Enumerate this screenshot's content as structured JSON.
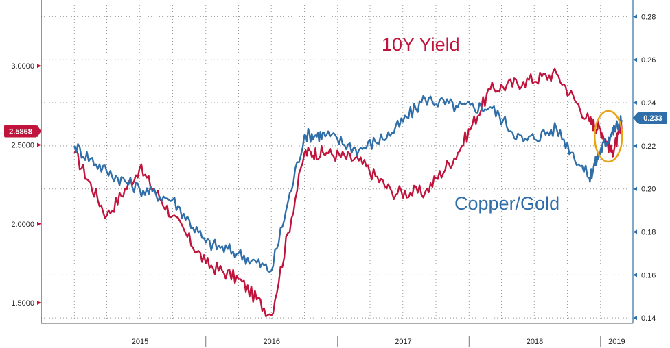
{
  "chart_data": {
    "type": "line",
    "title": "",
    "x": [
      "2015-01",
      "2015-04",
      "2015-07",
      "2015-10",
      "2016-01",
      "2016-04",
      "2016-07",
      "2016-10",
      "2016-12",
      "2017-03",
      "2017-06",
      "2017-09",
      "2017-12",
      "2018-03",
      "2018-06",
      "2018-09",
      "2018-12",
      "2019-01",
      "2019-02",
      "2019-03"
    ],
    "x_ticks": [
      "2015",
      "2016",
      "2017",
      "2018",
      "2019"
    ],
    "y_left": {
      "ticks": [
        "3.0000",
        "2.5000",
        "2.0000",
        "1.5000"
      ],
      "tick_values": [
        3.0,
        2.5,
        2.0,
        1.5
      ],
      "range": [
        1.37,
        3.4
      ]
    },
    "y_right": {
      "ticks": [
        "0.28",
        "0.26",
        "0.24",
        "0.22",
        "0.20",
        "0.18",
        "0.16",
        "0.14"
      ],
      "tick_values": [
        0.28,
        0.26,
        0.24,
        0.22,
        0.2,
        0.18,
        0.16,
        0.14
      ],
      "range": [
        0.1375,
        0.2865
      ]
    },
    "grid": true,
    "series": [
      {
        "name": "10Y Yield",
        "axis": "left",
        "color": "#c0143c",
        "values": [
          2.45,
          2.05,
          2.35,
          2.05,
          1.75,
          1.65,
          1.42,
          2.45,
          2.45,
          2.4,
          2.2,
          2.2,
          2.45,
          2.85,
          2.9,
          2.95,
          2.65,
          2.6,
          2.45,
          2.6
        ],
        "last_value_tag": "2.5868"
      },
      {
        "name": "Copper/Gold",
        "axis": "right",
        "color": "#2f6ea8",
        "values": [
          0.22,
          0.208,
          0.2,
          0.195,
          0.175,
          0.17,
          0.162,
          0.225,
          0.225,
          0.218,
          0.226,
          0.242,
          0.238,
          0.238,
          0.222,
          0.228,
          0.205,
          0.218,
          0.226,
          0.232
        ],
        "last_value_tag": "0.233"
      }
    ],
    "annotation": {
      "type": "ellipse",
      "color": "#e8a317",
      "x_from": "2019-01",
      "x_to": "2019-03"
    }
  }
}
